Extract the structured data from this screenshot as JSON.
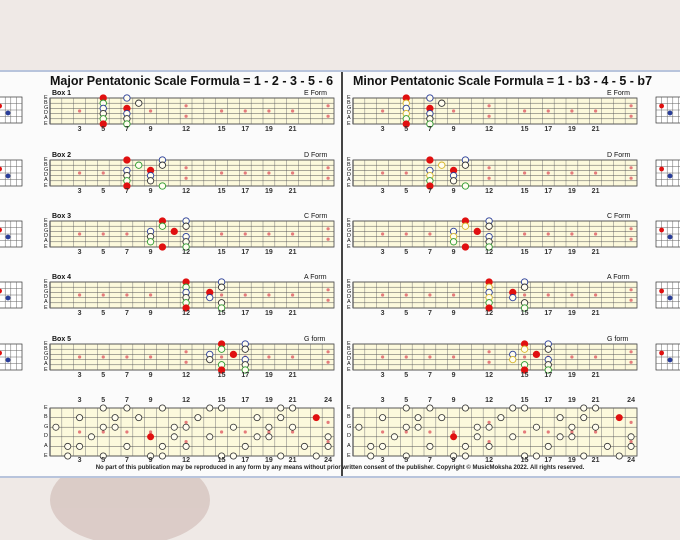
{
  "major": {
    "title": "Major Pentatonic Scale Formula = 1 - 2 - 3 - 5 - 6",
    "boxes": [
      {
        "box": "Box 1",
        "form": "E Form"
      },
      {
        "box": "Box 2",
        "form": "D Form"
      },
      {
        "box": "Box 3",
        "form": "C Form"
      },
      {
        "box": "Box 4",
        "form": "A Form"
      },
      {
        "box": "Box 5",
        "form": "G form"
      }
    ]
  },
  "minor": {
    "title": "Minor Pentatonic Scale Formula = 1 - b3 - 4 - 5 - b7",
    "boxes": [
      {
        "form": "E Form"
      },
      {
        "form": "D Form"
      },
      {
        "form": "C Form"
      },
      {
        "form": "A Form"
      },
      {
        "form": "G form"
      }
    ]
  },
  "strings": [
    "E",
    "B",
    "G",
    "D",
    "A",
    "E"
  ],
  "fret_numbers": [
    "3",
    "5",
    "7",
    "9",
    "12",
    "15",
    "17",
    "19",
    "21"
  ],
  "full_fret_numbers": [
    "3",
    "5",
    "7",
    "9",
    "12",
    "15",
    "17",
    "19",
    "21",
    "24"
  ],
  "copyright": "No part of this publication may be reproduced in any form by any means without prior written consent of the publisher. Copyright  ©  MusicMoksha 2022. All rights reserved.",
  "colors": {
    "root": "#e01010",
    "board": "#fcf9dc",
    "inlay": "#e57b7b",
    "degree2": "#2e9a2e",
    "degree3": "#2a3e9a",
    "blue_note": "#d6b52a",
    "frame": "#b8c4dc"
  }
}
